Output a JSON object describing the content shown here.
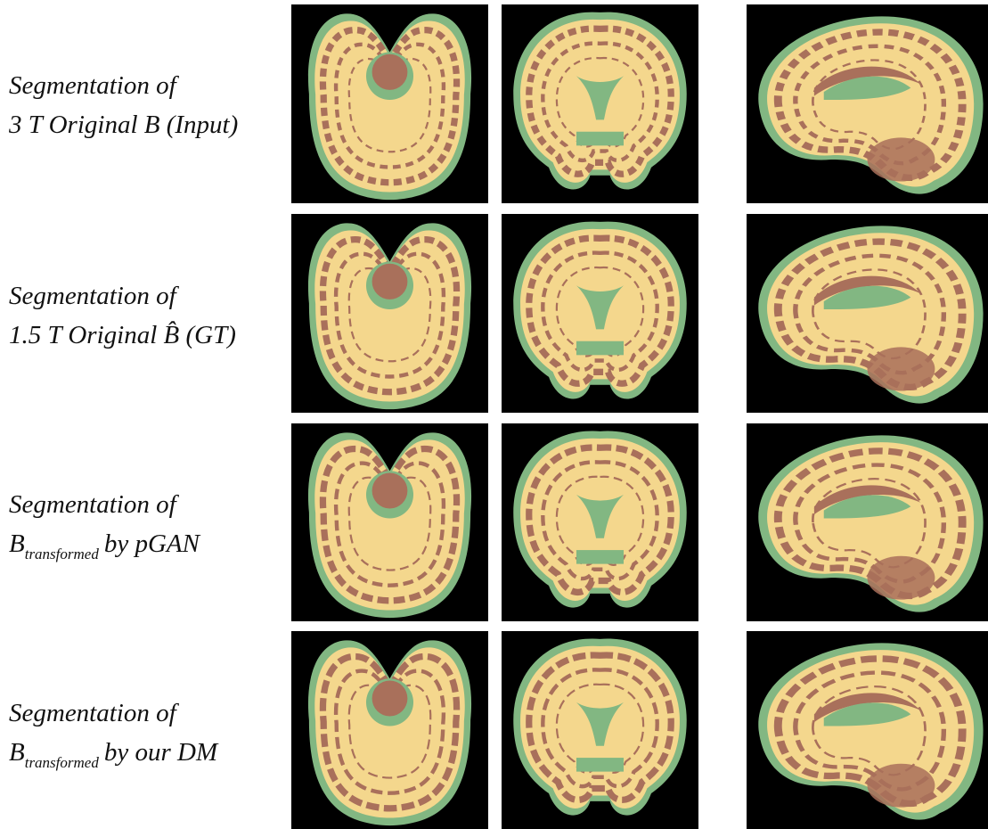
{
  "rows": [
    {
      "line1": "Segmentation of",
      "line2": "3 T Original B (Input)"
    },
    {
      "line1": "Segmentation of",
      "line2": "1.5 T Original B̂ (GT)"
    },
    {
      "line1": "Segmentation of",
      "line2": {
        "base": "B",
        "subscript": "transformed",
        "rest": "by pGAN"
      }
    },
    {
      "line1": "Segmentation of",
      "line2": {
        "base": "B",
        "subscript": "transformed",
        "rest": "by our DM"
      }
    }
  ]
}
